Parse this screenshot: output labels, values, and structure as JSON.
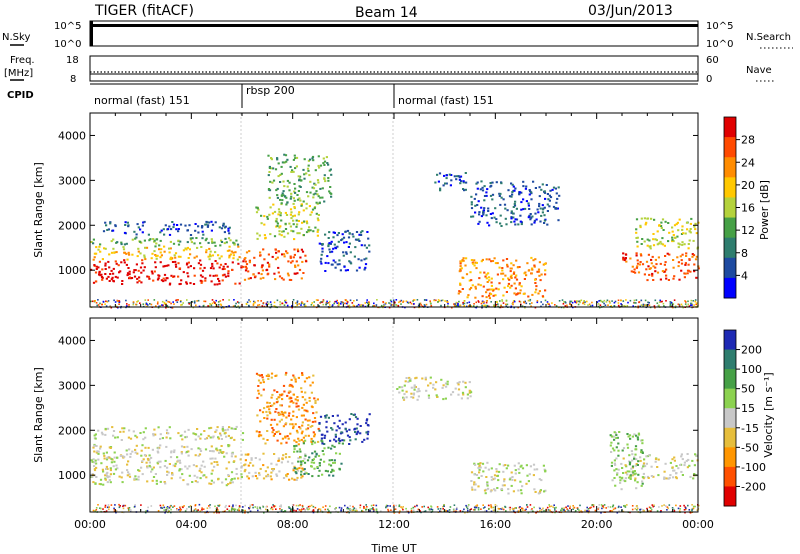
{
  "header": {
    "station": "TIGER (fitACF)",
    "beam": "Beam 14",
    "date": "03/Jun/2013"
  },
  "top_panels": {
    "nsky_label": "N.Sky",
    "nsearch_label": "N.Search",
    "nsky_ticks": [
      "10^5",
      "10^0"
    ],
    "nsearch_ticks": [
      "10^5",
      "10^0"
    ],
    "freq_label_1": "Freq.",
    "freq_label_2": "[MHz]",
    "freq_ticks": [
      "18",
      "8"
    ],
    "nave_label": "Nave",
    "nave_ticks": [
      "60",
      "0"
    ],
    "cpid_label": "CPID",
    "cpid_segments": [
      {
        "label": "normal (fast) 151",
        "start_h": 0,
        "end_h": 6.0
      },
      {
        "label": "rbsp 200",
        "start_h": 6.0,
        "end_h": 12.0
      },
      {
        "label": "normal (fast) 151",
        "start_h": 12.0,
        "end_h": 24
      }
    ]
  },
  "chart_data": [
    {
      "type": "heatmap",
      "name_hint": "power",
      "ylabel": "Slant Range [km]",
      "colorbar_label": "Power [dB]",
      "xlim": [
        0,
        24
      ],
      "ylim": [
        180,
        4500
      ],
      "yticks": [
        "1000",
        "2000",
        "3000",
        "4000"
      ],
      "colorbar_ticks": [
        "28",
        "24",
        "20",
        "16",
        "12",
        "8",
        "4"
      ],
      "colorbar_colors": [
        "#e00000",
        "#ff4a00",
        "#ff8c00",
        "#ffc800",
        "#b4d23c",
        "#46a046",
        "#2e7d6e",
        "#1e4aa0",
        "#0000ff"
      ],
      "scatter_regions": [
        {
          "t": [
            0.0,
            6.0
          ],
          "r": [
            700,
            1250
          ],
          "level": 0
        },
        {
          "t": [
            0.0,
            6.0
          ],
          "r": [
            1250,
            1550
          ],
          "level": 3
        },
        {
          "t": [
            0.0,
            6.0
          ],
          "r": [
            1550,
            1750
          ],
          "level": 5
        },
        {
          "t": [
            0.5,
            5.5
          ],
          "r": [
            1800,
            2100
          ],
          "level": 7
        },
        {
          "t": [
            6.0,
            8.5
          ],
          "r": [
            800,
            1500
          ],
          "level": 1
        },
        {
          "t": [
            6.5,
            9.0
          ],
          "r": [
            1700,
            2500
          ],
          "level": 4
        },
        {
          "t": [
            7.0,
            9.5
          ],
          "r": [
            2500,
            3600
          ],
          "level": 5
        },
        {
          "t": [
            9.0,
            11.0
          ],
          "r": [
            1000,
            1900
          ],
          "level": 7
        },
        {
          "t": [
            13.5,
            15.0
          ],
          "r": [
            2800,
            3200
          ],
          "level": 7
        },
        {
          "t": [
            14.5,
            18.0
          ],
          "r": [
            400,
            1300
          ],
          "level": 2
        },
        {
          "t": [
            15.0,
            18.5
          ],
          "r": [
            2000,
            3000
          ],
          "level": 7
        },
        {
          "t": [
            21.0,
            24.0
          ],
          "r": [
            800,
            1400
          ],
          "level": 1
        },
        {
          "t": [
            21.5,
            24.0
          ],
          "r": [
            1500,
            2200
          ],
          "level": 4
        }
      ]
    },
    {
      "type": "heatmap",
      "name_hint": "velocity",
      "ylabel": "Slant Range [km]",
      "xlabel": "Time UT",
      "colorbar_label": "Velocity [m s⁻¹]",
      "xlim": [
        0,
        24
      ],
      "ylim": [
        180,
        4500
      ],
      "yticks": [
        "1000",
        "2000",
        "3000",
        "4000"
      ],
      "xticks": [
        "00:00",
        "04:00",
        "08:00",
        "12:00",
        "16:00",
        "20:00",
        "00:00"
      ],
      "colorbar_ticks": [
        "200",
        "100",
        "50",
        "15",
        "-15",
        "-50",
        "-100",
        "-200"
      ],
      "colorbar_colors": [
        "#1e2ab4",
        "#2e7d6e",
        "#46a046",
        "#8cd250",
        "#c8c8c8",
        "#e6be3c",
        "#ff9600",
        "#ff5000",
        "#e00000"
      ],
      "scatter_regions": [
        {
          "t": [
            0.0,
            6.0
          ],
          "r": [
            800,
            1700
          ],
          "level": 4
        },
        {
          "t": [
            0.0,
            6.0
          ],
          "r": [
            1800,
            2100
          ],
          "level": 4
        },
        {
          "t": [
            6.0,
            8.5
          ],
          "r": [
            900,
            1500
          ],
          "level": 5
        },
        {
          "t": [
            6.5,
            9.0
          ],
          "r": [
            1700,
            3300
          ],
          "level": 6
        },
        {
          "t": [
            8.0,
            10.0
          ],
          "r": [
            1000,
            1800
          ],
          "level": 2
        },
        {
          "t": [
            9.0,
            11.0
          ],
          "r": [
            1700,
            2400
          ],
          "level": 0
        },
        {
          "t": [
            12.0,
            15.0
          ],
          "r": [
            2700,
            3200
          ],
          "level": 4
        },
        {
          "t": [
            15.0,
            18.0
          ],
          "r": [
            600,
            1300
          ],
          "level": 4
        },
        {
          "t": [
            21.0,
            24.0
          ],
          "r": [
            900,
            1500
          ],
          "level": 4
        },
        {
          "t": [
            20.5,
            21.8
          ],
          "r": [
            700,
            2000
          ],
          "level": 3
        }
      ]
    }
  ]
}
